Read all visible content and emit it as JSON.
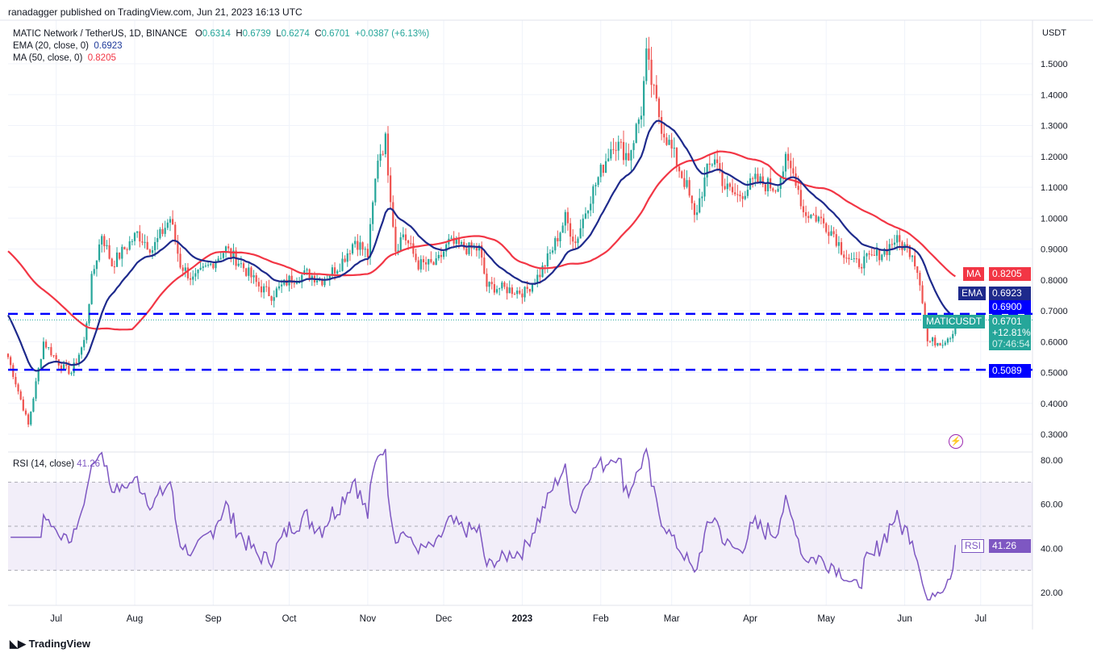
{
  "header": {
    "published": "ranadagger published on TradingView.com, Jun 21, 2023 16:13 UTC"
  },
  "legend": {
    "symbol": "MATIC Network / TetherUS, 1D, BINANCE",
    "o_label": "O",
    "o": "0.6314",
    "h_label": "H",
    "h": "0.6739",
    "l_label": "L",
    "l": "0.6274",
    "c_label": "C",
    "c": "0.6701",
    "change": "+0.0387 (+6.13%)",
    "ema": "EMA (20, close, 0)",
    "ema_val": "0.6923",
    "ma": "MA (50, close, 0)",
    "ma_val": "0.8205",
    "rsi": "RSI (14, close)",
    "rsi_val": "41.26"
  },
  "tags": {
    "ma_label": "MA",
    "ma_val": "0.8205",
    "ema_label": "EMA",
    "ema_val": "0.6923",
    "res": "0.6900",
    "sup": "0.5089",
    "sym": "MATICUSDT",
    "price": "0.6701",
    "pct": "+12.81%",
    "timer": "07:46:54",
    "rsi_label": "RSI",
    "rsi_val": "41.26"
  },
  "footer": {
    "brand": "TradingView"
  },
  "colors": {
    "up": "#26a69a",
    "down": "#ef5350",
    "ema": "#1e2a8c",
    "ma": "#f23645",
    "level": "#0000ff",
    "rsi": "#7e57c2"
  },
  "chart_data": {
    "type": "candlestick",
    "currency": "USDT",
    "price_ticks": [
      "1.5000",
      "1.4000",
      "1.3000",
      "1.2000",
      "1.1000",
      "1.0000",
      "0.9000",
      "0.8000",
      "0.7000",
      "0.6000",
      "0.5000",
      "0.4000",
      "0.3000"
    ],
    "price_range": [
      0.3,
      1.5
    ],
    "rsi_ticks": [
      "80.00",
      "60.00",
      "40.00",
      "20.00"
    ],
    "rsi_band": [
      30,
      70
    ],
    "x_labels": [
      "Jul",
      "Aug",
      "Sep",
      "Oct",
      "Nov",
      "Dec",
      "2023",
      "Feb",
      "Mar",
      "Apr",
      "May",
      "Jun",
      "Jul"
    ],
    "x_label_days": [
      19,
      50,
      81,
      111,
      142,
      172,
      203,
      234,
      262,
      293,
      323,
      354,
      384
    ],
    "horizontal_levels": [
      0.69,
      0.5089
    ],
    "close_path_day_price": [
      [
        0,
        0.55
      ],
      [
        8,
        0.33
      ],
      [
        14,
        0.6
      ],
      [
        21,
        0.52
      ],
      [
        25,
        0.5
      ],
      [
        30,
        0.6
      ],
      [
        33,
        0.8
      ],
      [
        37,
        0.95
      ],
      [
        41,
        0.85
      ],
      [
        46,
        0.9
      ],
      [
        51,
        0.95
      ],
      [
        57,
        0.9
      ],
      [
        64,
        1.0
      ],
      [
        68,
        0.85
      ],
      [
        73,
        0.8
      ],
      [
        80,
        0.85
      ],
      [
        86,
        0.9
      ],
      [
        92,
        0.85
      ],
      [
        99,
        0.78
      ],
      [
        104,
        0.75
      ],
      [
        111,
        0.8
      ],
      [
        118,
        0.82
      ],
      [
        124,
        0.8
      ],
      [
        131,
        0.85
      ],
      [
        137,
        0.93
      ],
      [
        142,
        0.88
      ],
      [
        146,
        1.2
      ],
      [
        149,
        1.25
      ],
      [
        153,
        0.9
      ],
      [
        156,
        0.95
      ],
      [
        162,
        0.85
      ],
      [
        169,
        0.85
      ],
      [
        174,
        0.92
      ],
      [
        182,
        0.9
      ],
      [
        186,
        0.9
      ],
      [
        189,
        0.78
      ],
      [
        197,
        0.77
      ],
      [
        204,
        0.76
      ],
      [
        210,
        0.82
      ],
      [
        215,
        0.9
      ],
      [
        220,
        1.0
      ],
      [
        224,
        0.92
      ],
      [
        229,
        1.05
      ],
      [
        234,
        1.15
      ],
      [
        239,
        1.25
      ],
      [
        245,
        1.2
      ],
      [
        250,
        1.35
      ],
      [
        252,
        1.52
      ],
      [
        255,
        1.4
      ],
      [
        258,
        1.3
      ],
      [
        263,
        1.2
      ],
      [
        268,
        1.1
      ],
      [
        271,
        1.0
      ],
      [
        276,
        1.15
      ],
      [
        279,
        1.2
      ],
      [
        283,
        1.1
      ],
      [
        288,
        1.07
      ],
      [
        295,
        1.12
      ],
      [
        303,
        1.1
      ],
      [
        307,
        1.18
      ],
      [
        311,
        1.13
      ],
      [
        314,
        1.02
      ],
      [
        320,
        1.0
      ],
      [
        326,
        0.95
      ],
      [
        329,
        0.9
      ],
      [
        334,
        0.85
      ],
      [
        341,
        0.87
      ],
      [
        347,
        0.9
      ],
      [
        350,
        0.93
      ],
      [
        357,
        0.89
      ],
      [
        360,
        0.8
      ],
      [
        363,
        0.6
      ],
      [
        366,
        0.6
      ],
      [
        369,
        0.6
      ],
      [
        373,
        0.63
      ],
      [
        374,
        0.6701
      ]
    ]
  }
}
